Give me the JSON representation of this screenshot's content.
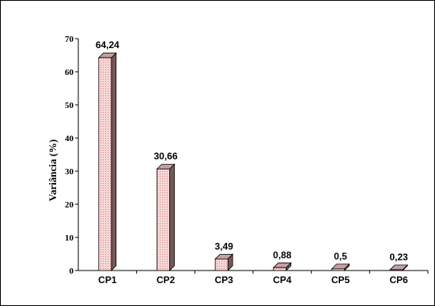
{
  "chart_data": {
    "type": "bar",
    "categories": [
      "CP1",
      "CP2",
      "CP3",
      "CP4",
      "CP5",
      "CP6"
    ],
    "values": [
      64.24,
      30.66,
      3.49,
      0.88,
      0.5,
      0.23
    ],
    "data_labels": [
      "64,24",
      "30,66",
      "3,49",
      "0,88",
      "0,5",
      "0,23"
    ],
    "title": "",
    "xlabel": "",
    "ylabel": "Variância (%)",
    "ylim": [
      0,
      70
    ],
    "yticks": [
      0,
      10,
      20,
      30,
      40,
      50,
      60,
      70
    ],
    "grid": false,
    "legend": "none",
    "style": "3d-bars",
    "colors": {
      "bar_front": "#f6d6d6",
      "bar_dots": "#d28a8a",
      "bar_side": "#7a5656",
      "bar_top": "#c6a0a0",
      "axis": "#000000"
    }
  }
}
